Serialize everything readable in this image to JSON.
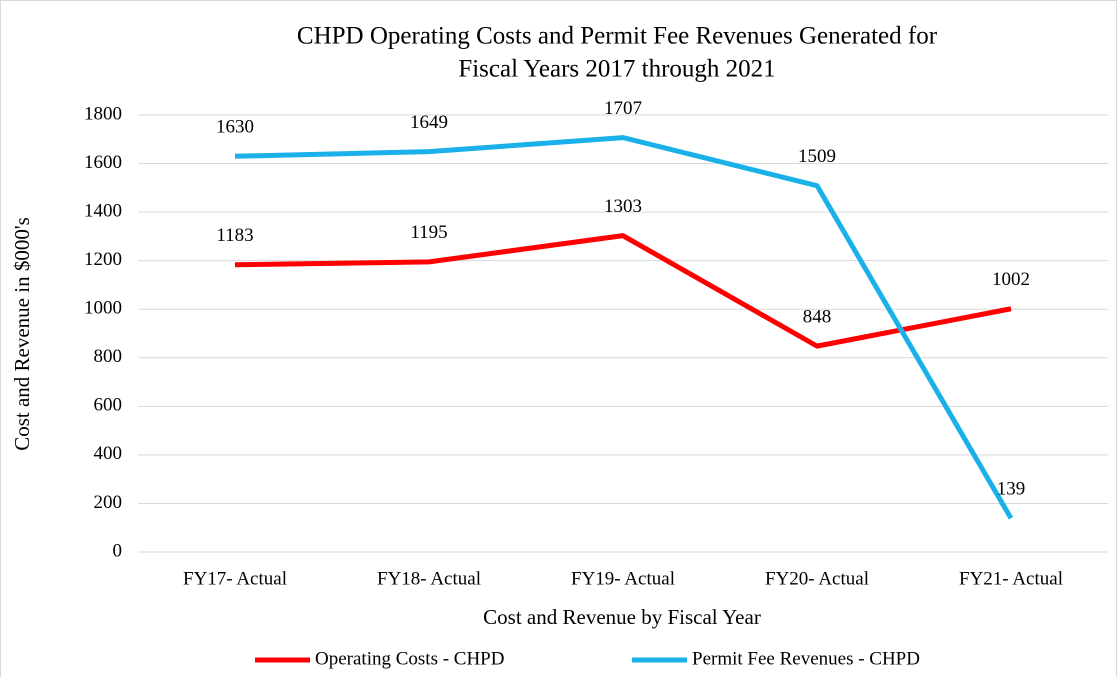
{
  "chart_data": {
    "type": "line",
    "title": [
      "CHPD Operating Costs and Permit Fee Revenues Generated for",
      "Fiscal Years 2017 through 2021"
    ],
    "x_label": "Cost and Revenue by Fiscal Year",
    "y_label": "Cost and Revenue in $000's",
    "categories": [
      "FY17- Actual",
      "FY18- Actual",
      "FY19- Actual",
      "FY20- Actual",
      "FY21- Actual"
    ],
    "series": [
      {
        "name": "Operating Costs - CHPD",
        "color": "#ff0000",
        "values": [
          1183,
          1195,
          1303,
          848,
          1002
        ]
      },
      {
        "name": "Permit Fee Revenues - CHPD",
        "color": "#1ab0ea",
        "values": [
          1630,
          1649,
          1707,
          1509,
          139
        ]
      }
    ],
    "ylim": [
      0,
      1800
    ],
    "yticks": [
      0,
      200,
      400,
      600,
      800,
      1000,
      1200,
      1400,
      1600,
      1800
    ],
    "grid": true,
    "legend": "bottom"
  }
}
